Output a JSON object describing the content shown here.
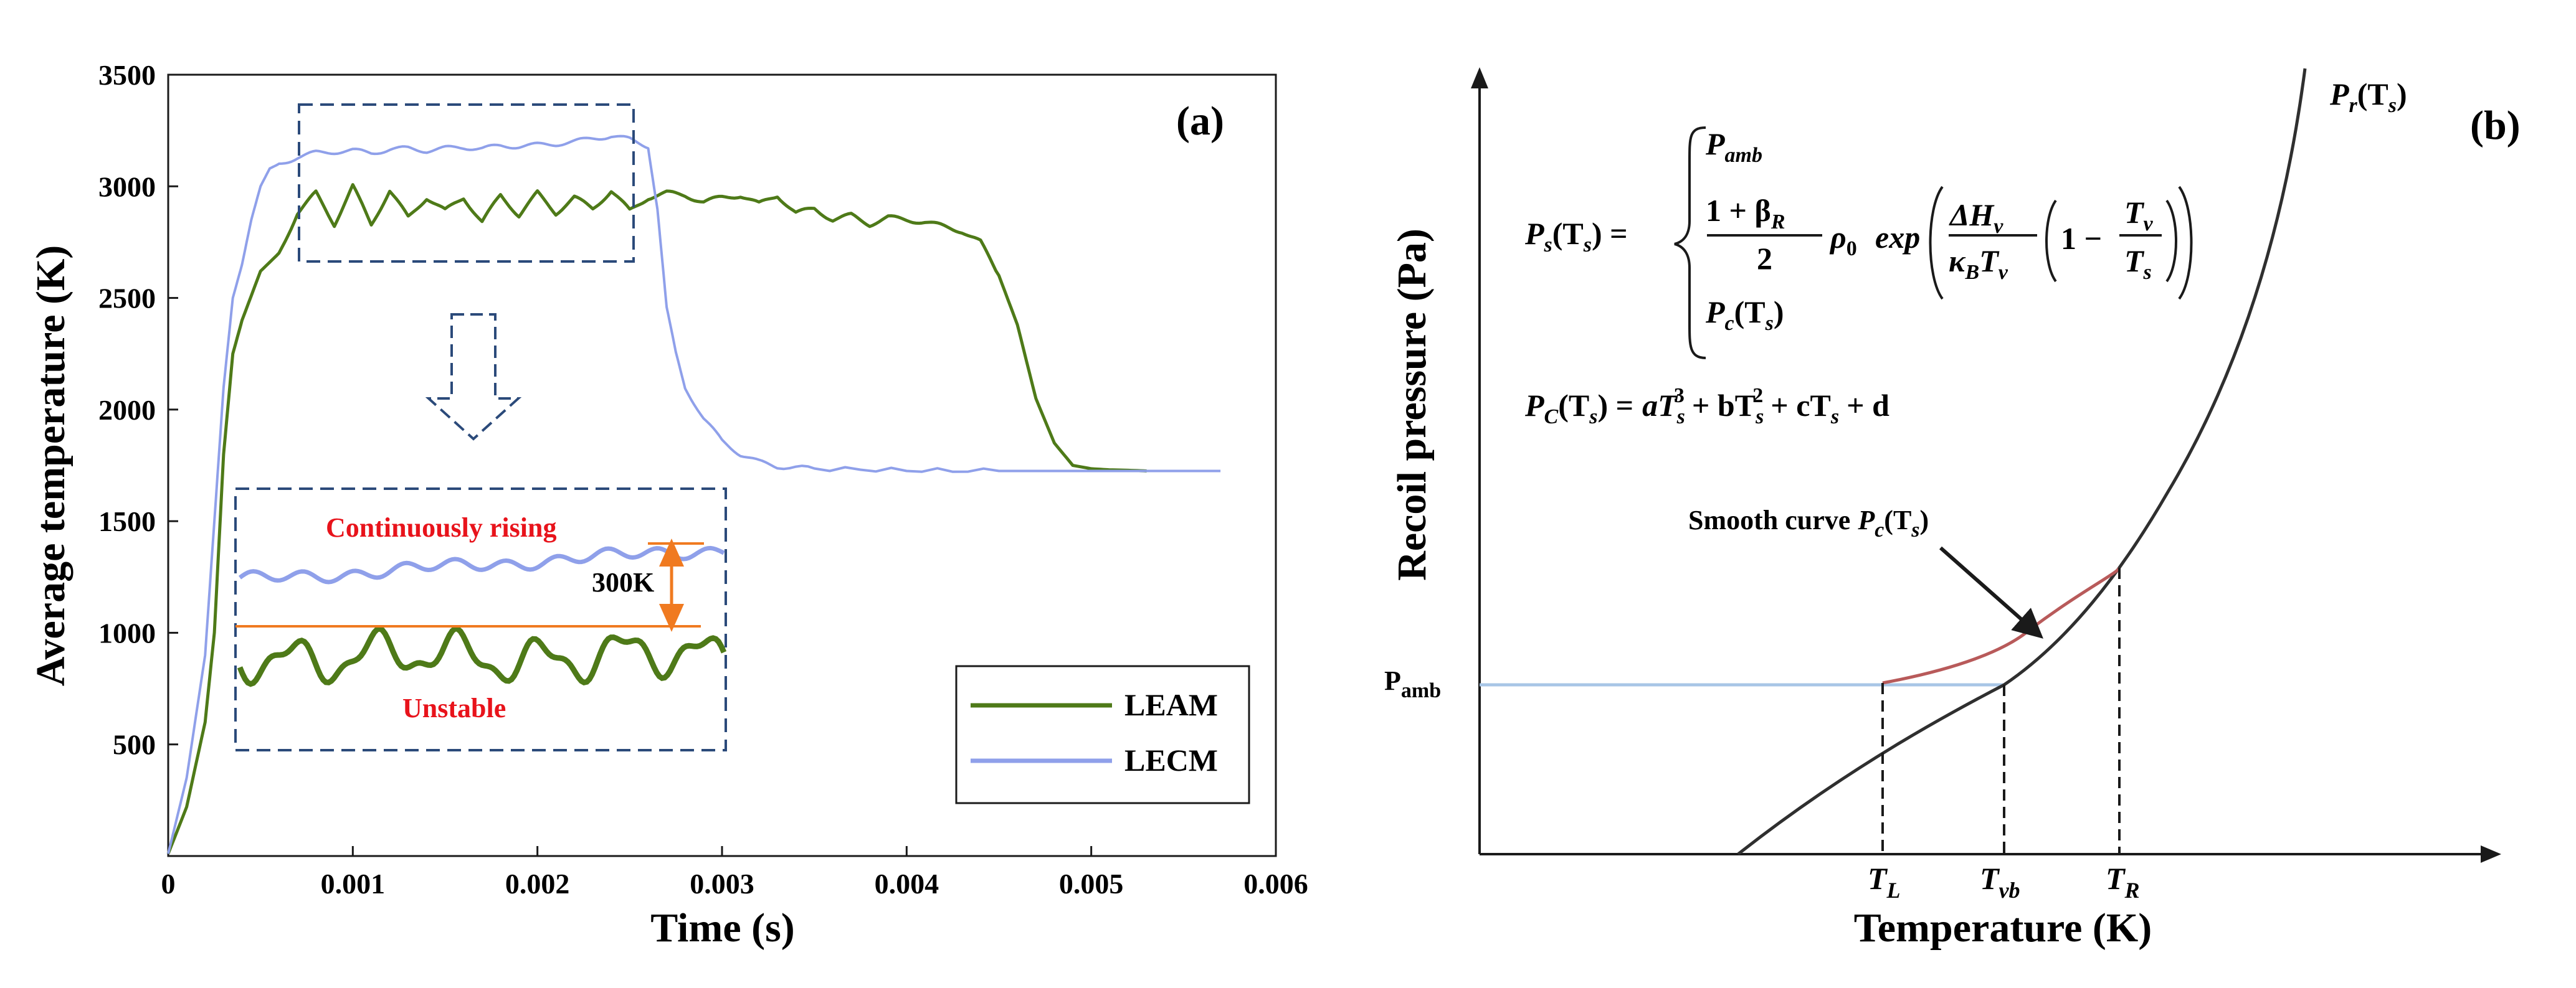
{
  "chart_data": [
    {
      "type": "line",
      "panel_label": "(a)",
      "xlabel": "Time (s)",
      "ylabel": "Average temperature (K)",
      "xlim": [
        0,
        0.006
      ],
      "ylim": [
        0,
        3500
      ],
      "x_ticks": [
        "0",
        "0.001",
        "0.002",
        "0.003",
        "0.004",
        "0.005",
        "0.006"
      ],
      "y_ticks": [
        "500",
        "1000",
        "1500",
        "2000",
        "2500",
        "3000",
        "3500"
      ],
      "legend": {
        "position": "lower-right",
        "entries": [
          "LEAM",
          "LECM"
        ]
      },
      "colors": {
        "LEAM": "#4e7a18",
        "LECM": "#8fa0ea",
        "highlight_box": "#2b4a7a",
        "marker": "#f07a20",
        "note": "#e8131b"
      },
      "series": [
        {
          "name": "LEAM",
          "x": [
            0,
            0.0001,
            0.0002,
            0.00025,
            0.0003,
            0.00035,
            0.0004,
            0.0005,
            0.0006,
            0.0007,
            0.0008,
            0.0009,
            0.001,
            0.0011,
            0.0012,
            0.0013,
            0.0014,
            0.0015,
            0.0016,
            0.0017,
            0.0018,
            0.0019,
            0.002,
            0.0021,
            0.0022,
            0.0023,
            0.0024,
            0.0025,
            0.0026,
            0.0027,
            0.0028,
            0.0029,
            0.003,
            0.0031,
            0.0032,
            0.0033,
            0.0034,
            0.0035,
            0.0036,
            0.0037,
            0.0038,
            0.0039,
            0.004,
            0.0041,
            0.0042,
            0.0043,
            0.0044,
            0.0045,
            0.0046,
            0.0047,
            0.0048,
            0.0049,
            0.005,
            0.0051,
            0.0052,
            0.0053
          ],
          "y": [
            10,
            220,
            600,
            1000,
            1800,
            2250,
            2400,
            2620,
            2700,
            2880,
            2970,
            2830,
            3000,
            2830,
            2980,
            2860,
            2950,
            2890,
            2950,
            2840,
            2960,
            2870,
            2970,
            2880,
            2950,
            2900,
            2980,
            2890,
            2950,
            2970,
            2960,
            2930,
            2950,
            2960,
            2920,
            2960,
            2880,
            2900,
            2850,
            2870,
            2830,
            2860,
            2850,
            2840,
            2820,
            2800,
            2750,
            2600,
            2380,
            2050,
            1850,
            1750,
            1735,
            1730,
            1728,
            1725
          ]
        },
        {
          "name": "LECM",
          "x": [
            0,
            0.0001,
            0.0002,
            0.00025,
            0.0003,
            0.00035,
            0.0004,
            0.00045,
            0.0005,
            0.00055,
            0.0006,
            0.0007,
            0.0008,
            0.0009,
            0.001,
            0.0011,
            0.0012,
            0.0013,
            0.0014,
            0.0015,
            0.0016,
            0.0017,
            0.0018,
            0.0019,
            0.002,
            0.0021,
            0.0022,
            0.0023,
            0.0024,
            0.0025,
            0.0026,
            0.00265,
            0.0027,
            0.00275,
            0.0028,
            0.0029,
            0.003,
            0.0031,
            0.0032,
            0.0033,
            0.0035,
            0.004,
            0.0045,
            0.005,
            0.0055,
            0.0057
          ],
          "y": [
            10,
            350,
            900,
            1500,
            2100,
            2500,
            2650,
            2850,
            3000,
            3080,
            3100,
            3130,
            3150,
            3155,
            3160,
            3150,
            3165,
            3170,
            3160,
            3170,
            3175,
            3170,
            3180,
            3180,
            3185,
            3190,
            3200,
            3215,
            3225,
            3210,
            3180,
            2900,
            2450,
            2250,
            2100,
            1960,
            1860,
            1800,
            1765,
            1745,
            1735,
            1728,
            1725,
            1725,
            1725,
            1725
          ]
        }
      ],
      "annotations": {
        "zoom_note_top": "Continuously rising",
        "zoom_note_bottom": "Unstable",
        "difference_label": "300K"
      }
    },
    {
      "type": "line",
      "panel_label": "(b)",
      "xlabel": "Temperature (K)",
      "ylabel": "Recoil pressure (Pa)",
      "p_amb_label": "P",
      "p_amb_sub": "amb",
      "curve_label": "P",
      "curve_label_sub": "r",
      "curve_label_tail": "(T",
      "curve_label_tail_sub": "s",
      "curve_label_close": ")",
      "smooth_label": "Smooth curve",
      "smooth_label_var": "P",
      "smooth_label_sub": "c",
      "smooth_label_tail": "(T",
      "smooth_label_tail_sub": "s",
      "smooth_label_close": ")",
      "temp_markers": [
        {
          "symbol": "T",
          "sub": "L"
        },
        {
          "symbol": "T",
          "sub": "vb"
        },
        {
          "symbol": "T",
          "sub": "R"
        }
      ],
      "colors": {
        "recoil_curve": "#2f2f2f",
        "smooth_curve": "#b85a5a",
        "p_amb_line": "#a8c6e6"
      },
      "equations": {
        "ps_lhs": "P",
        "ps_lhs_sub": "s",
        "ps_lhs_tail": "(T",
        "ps_lhs_tail_sub": "s",
        "ps_lhs_close": ") =",
        "case1_var": "P",
        "case1_sub": "amb",
        "case2_num": "1 + β",
        "case2_num_sub": "R",
        "case2_den": "2",
        "case2_rho": "ρ",
        "case2_rho_sub": "0",
        "case2_exp": "exp",
        "inner_num": "ΔH",
        "inner_num_sub": "v",
        "inner_den": "κ",
        "inner_den_sub": "B",
        "inner_den_tail": "T",
        "inner_den_tail_sub": "v",
        "inner_one": "1 −",
        "frac2_num": "T",
        "frac2_num_sub": "v",
        "frac2_den": "T",
        "frac2_den_sub": "s",
        "case3_var": "P",
        "case3_sub": "c",
        "case3_tail": "(T",
        "case3_tail_sub": "s",
        "case3_close": ")",
        "pc_lhs": "P",
        "pc_lhs_sub": "C",
        "pc_lhs_tail": "(T",
        "pc_lhs_tail_sub": "s",
        "pc_lhs_close": ") =",
        "pc_t1": "aT",
        "pc_t1_sub": "s",
        "pc_t1_sup": "3",
        "pc_t2": "+ bT",
        "pc_t2_sub": "s",
        "pc_t2_sup": "2",
        "pc_t3": "+ cT",
        "pc_t3_sub": "s",
        "pc_t4": "+ d"
      }
    }
  ]
}
